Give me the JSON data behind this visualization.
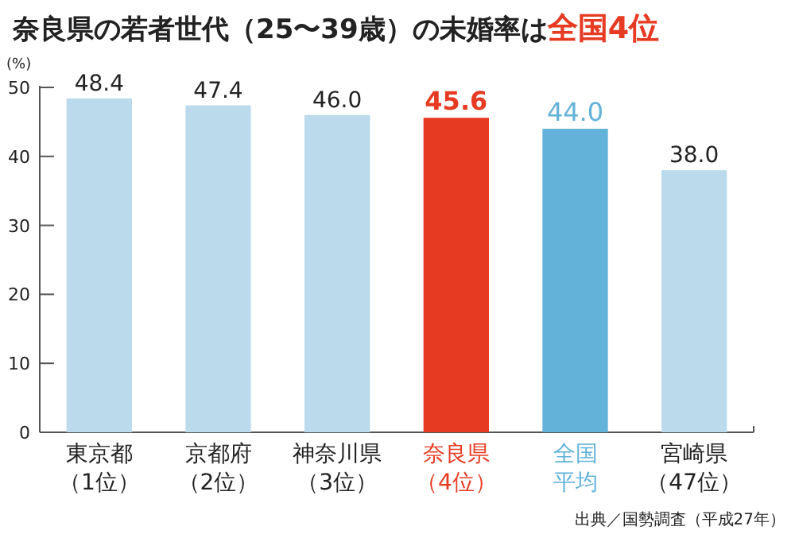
{
  "chart_data": {
    "type": "bar",
    "title": "奈良県の若者世代（25〜39歳）の未婚率は",
    "ylabel": "(%)",
    "annotations": [
      "全国4位",
      "出典／国勢調査（平成27年）"
    ],
    "categories": [
      "東京都（1位）",
      "京都府（2位）",
      "神奈川県（3位）",
      "奈良県（4位）",
      "全国平均",
      "宮崎県（47位）"
    ],
    "values": [
      48.4,
      47.4,
      46.0,
      45.6,
      44.0,
      38.0
    ],
    "value_labels": [
      "48.4",
      "47.4",
      "46.0",
      "45.6",
      "44.0",
      "38.0"
    ],
    "colors": [
      "#bbdaec",
      "#bbdaec",
      "#bbdaec",
      "#e63b22",
      "#62b2d9",
      "#bbdaec"
    ],
    "ylim": [
      0,
      50
    ],
    "yticks": [
      0,
      10,
      20,
      30,
      40,
      50
    ],
    "grid": false
  }
}
